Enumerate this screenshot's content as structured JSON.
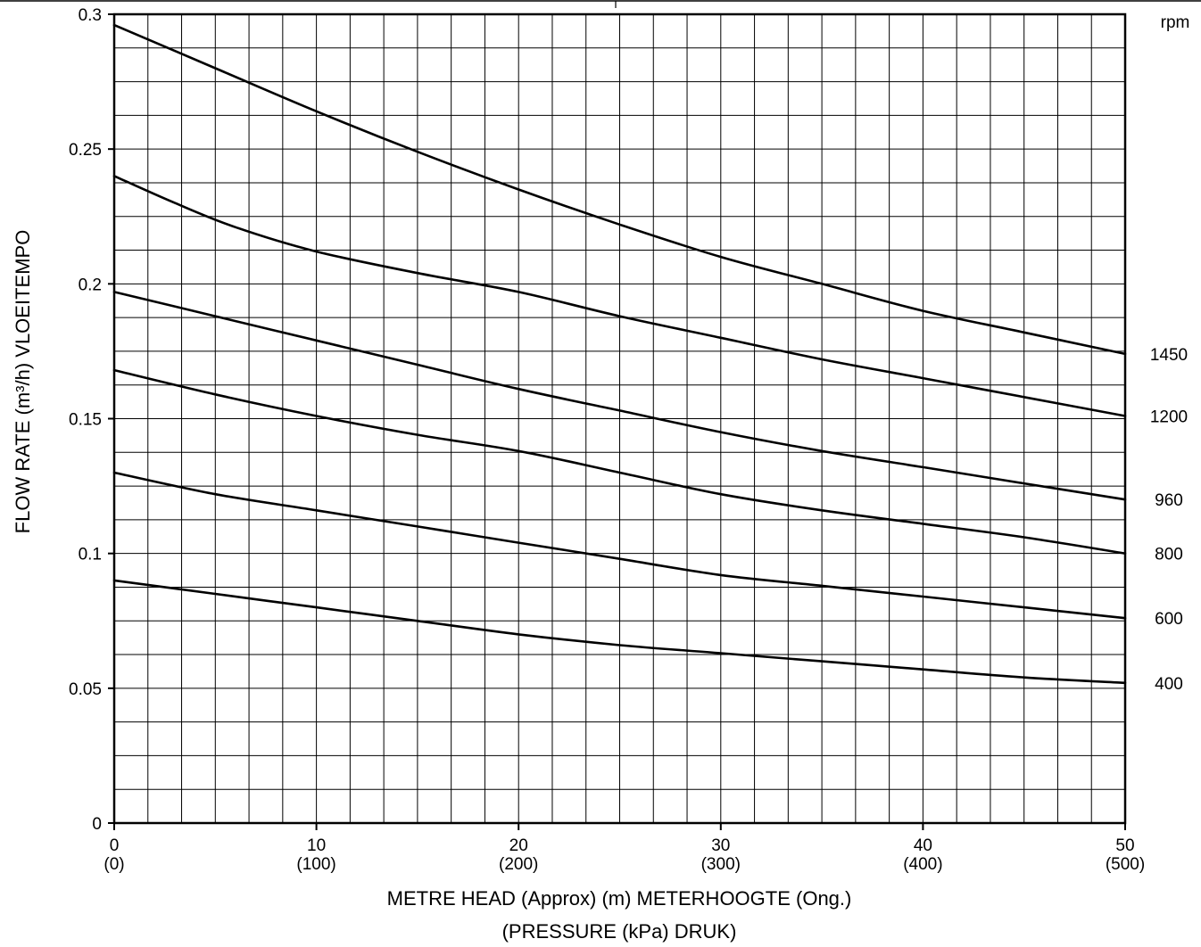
{
  "chart_data": {
    "type": "line",
    "title": "",
    "xlabel": "METRE HEAD (Approx) (m) METERHOOGTE (Ong.)",
    "xlabel2": "(PRESSURE (kPa) DRUK)",
    "ylabel": "FLOW RATE (m³/h) VLOEITEMPO",
    "xlim": [
      0,
      50
    ],
    "ylim": [
      0,
      0.3
    ],
    "grid": true,
    "x_minor_step": 1.6667,
    "y_minor_step": 0.0125,
    "x_ticks": [
      {
        "value": 0,
        "label": "0",
        "sublabel": "(0)"
      },
      {
        "value": 10,
        "label": "10",
        "sublabel": "(100)"
      },
      {
        "value": 20,
        "label": "20",
        "sublabel": "(200)"
      },
      {
        "value": 30,
        "label": "30",
        "sublabel": "(300)"
      },
      {
        "value": 40,
        "label": "40",
        "sublabel": "(400)"
      },
      {
        "value": 50,
        "label": "50",
        "sublabel": "(500)"
      }
    ],
    "y_ticks": [
      {
        "value": 0,
        "label": "0"
      },
      {
        "value": 0.05,
        "label": "0.05"
      },
      {
        "value": 0.1,
        "label": "0.1"
      },
      {
        "value": 0.15,
        "label": "0.15"
      },
      {
        "value": 0.2,
        "label": "0.2"
      },
      {
        "value": 0.25,
        "label": "0.25"
      },
      {
        "value": 0.3,
        "label": "0.3"
      }
    ],
    "series_unit_label": "rpm",
    "series": [
      {
        "name": "1450",
        "x": [
          0,
          5,
          10,
          15,
          20,
          25,
          30,
          35,
          40,
          45,
          50
        ],
        "values": [
          0.296,
          0.28,
          0.264,
          0.249,
          0.235,
          0.222,
          0.21,
          0.2,
          0.19,
          0.182,
          0.174
        ]
      },
      {
        "name": "1200",
        "x": [
          0,
          3,
          6,
          10,
          15,
          20,
          25,
          30,
          35,
          40,
          45,
          50
        ],
        "values": [
          0.24,
          0.23,
          0.221,
          0.212,
          0.204,
          0.197,
          0.188,
          0.18,
          0.172,
          0.165,
          0.158,
          0.151
        ]
      },
      {
        "name": "960",
        "x": [
          0,
          5,
          10,
          15,
          20,
          25,
          30,
          35,
          40,
          45,
          50
        ],
        "values": [
          0.197,
          0.188,
          0.179,
          0.17,
          0.161,
          0.153,
          0.145,
          0.138,
          0.132,
          0.126,
          0.12
        ]
      },
      {
        "name": "800",
        "x": [
          0,
          5,
          10,
          15,
          20,
          25,
          30,
          35,
          40,
          45,
          50
        ],
        "values": [
          0.168,
          0.159,
          0.151,
          0.144,
          0.138,
          0.13,
          0.122,
          0.116,
          0.111,
          0.106,
          0.1
        ]
      },
      {
        "name": "600",
        "x": [
          0,
          5,
          10,
          15,
          20,
          25,
          30,
          35,
          40,
          45,
          50
        ],
        "values": [
          0.13,
          0.122,
          0.116,
          0.11,
          0.104,
          0.098,
          0.092,
          0.088,
          0.084,
          0.08,
          0.076
        ]
      },
      {
        "name": "400",
        "x": [
          0,
          5,
          10,
          15,
          20,
          25,
          30,
          35,
          40,
          45,
          50
        ],
        "values": [
          0.09,
          0.085,
          0.08,
          0.075,
          0.07,
          0.066,
          0.063,
          0.06,
          0.057,
          0.054,
          0.052
        ]
      }
    ]
  }
}
